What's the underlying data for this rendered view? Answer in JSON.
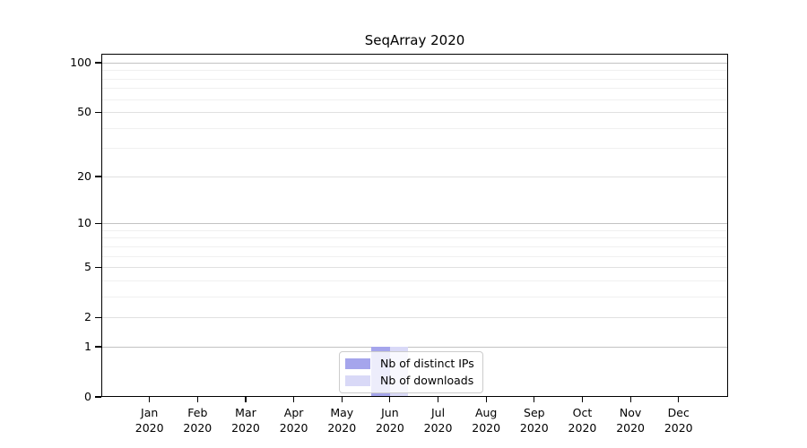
{
  "title": "SeqArray 2020",
  "chart_data": {
    "type": "bar",
    "title": "SeqArray 2020",
    "categories": [
      "Jan",
      "Feb",
      "Mar",
      "Apr",
      "May",
      "Jun",
      "Jul",
      "Aug",
      "Sep",
      "Oct",
      "Nov",
      "Dec"
    ],
    "year_label": "2020",
    "series": [
      {
        "name": "Nb of distinct IPs",
        "color": "#a5a5ec",
        "values": [
          0,
          0,
          0,
          0,
          0,
          1,
          0,
          0,
          0,
          0,
          0,
          0
        ]
      },
      {
        "name": "Nb of downloads",
        "color": "#d9d9f7",
        "values": [
          0,
          0,
          0,
          0,
          0,
          1,
          0,
          0,
          0,
          0,
          0,
          0
        ]
      }
    ],
    "xlabel": "",
    "ylabel": "",
    "y_axis": {
      "scale": "log1p",
      "ticks": [
        0,
        1,
        2,
        5,
        10,
        20,
        50,
        100
      ],
      "minor_ticks": [
        3,
        4,
        6,
        7,
        8,
        9,
        30,
        40,
        60,
        70,
        80,
        90
      ],
      "ylim": [
        0,
        100
      ]
    },
    "grid": "horizontal",
    "legend_position": "bottom-center"
  }
}
